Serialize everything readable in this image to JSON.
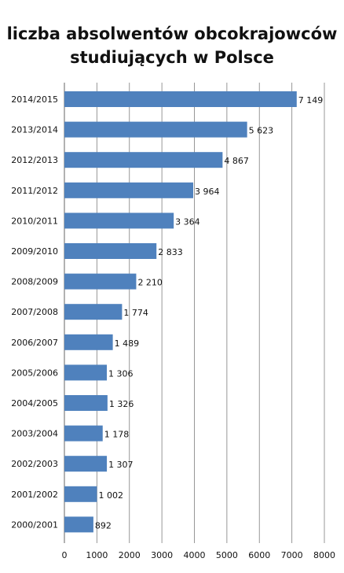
{
  "chart_data": {
    "type": "bar",
    "orientation": "horizontal",
    "title_lines": [
      "liczba absolwentów obcokrajowców",
      "studiujących w Polsce"
    ],
    "categories": [
      "2014/2015",
      "2013/2014",
      "2012/2013",
      "2011/2012",
      "2010/2011",
      "2009/2010",
      "2008/2009",
      "2007/2008",
      "2006/2007",
      "2005/2006",
      "2004/2005",
      "2003/2004",
      "2002/2003",
      "2001/2002",
      "2000/2001"
    ],
    "values": [
      7149,
      5623,
      4867,
      3964,
      3364,
      2833,
      2210,
      1774,
      1489,
      1306,
      1326,
      1178,
      1307,
      1002,
      892
    ],
    "value_labels": [
      "7 149",
      "5 623",
      "4 867",
      "3 964",
      "3 364",
      "2 833",
      "2 210",
      "1 774",
      "1 489",
      "1 306",
      "1 326",
      "1 178",
      "1 307",
      "1 002",
      "892"
    ],
    "xlim": [
      0,
      8000
    ],
    "x_ticks": [
      0,
      1000,
      2000,
      3000,
      4000,
      5000,
      6000,
      7000,
      8000
    ],
    "grid": true,
    "bar_color": "#4f81bd",
    "legend": "none"
  }
}
